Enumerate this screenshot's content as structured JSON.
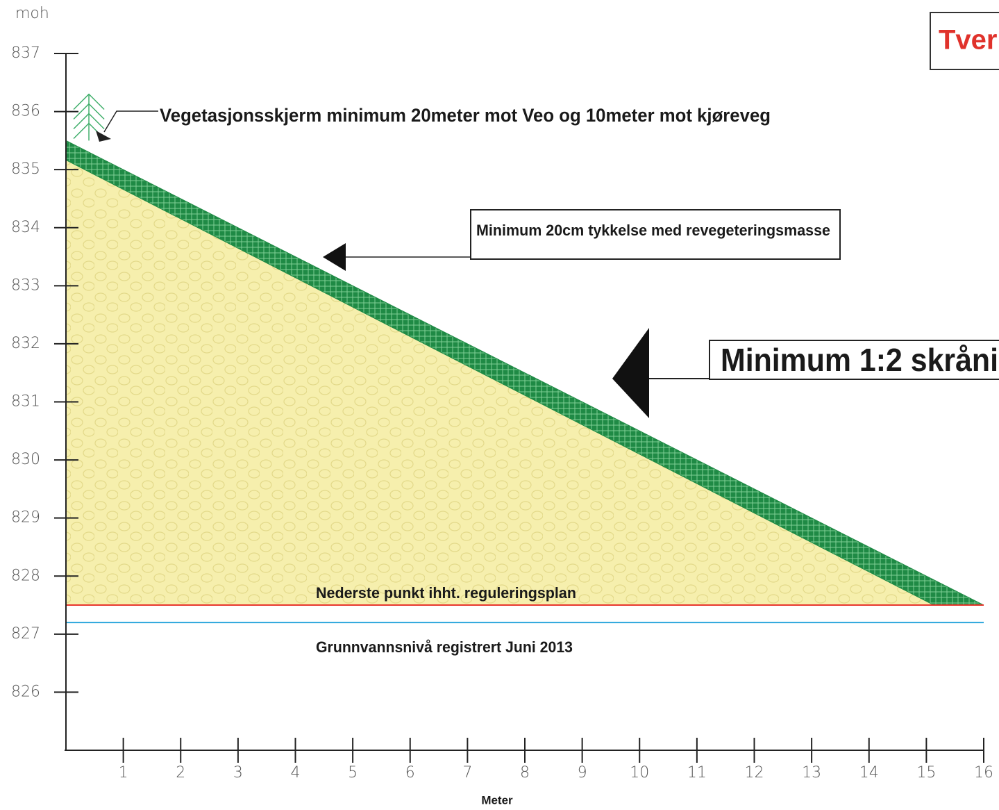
{
  "chart_data": {
    "type": "profile",
    "title": "Tverr",
    "y_label": "moh",
    "x_label": "Meter",
    "xlim": [
      0,
      16
    ],
    "ylim": [
      825,
      837
    ],
    "xticks": [
      1,
      2,
      3,
      4,
      5,
      6,
      7,
      8,
      9,
      10,
      11,
      12,
      13,
      14,
      15,
      16
    ],
    "yticks": [
      826,
      827,
      828,
      829,
      830,
      831,
      832,
      833,
      834,
      835,
      836,
      837
    ],
    "slope": {
      "x": [
        0,
        16
      ],
      "values": [
        835.5,
        827.5
      ],
      "fill_color": "#f6efad",
      "layer_color": "#1f8a45"
    },
    "series": [
      {
        "name": "Nederste punkt ihht. reguleringsplan",
        "color": "#e8362c",
        "x": [
          0,
          16
        ],
        "values": [
          827.5,
          827.5
        ]
      },
      {
        "name": "Grunnvannsnivå registrert Juni 2013",
        "color": "#2aa6dc",
        "x": [
          0,
          16
        ],
        "values": [
          827.2,
          827.2
        ]
      }
    ],
    "annotations": [
      {
        "text": "Vegetasjonsskjerm minimum 20meter mot Veo og 10meter mot kjøreveg"
      },
      {
        "text": "Minimum 20cm tykkelse med revegeteringsmasse"
      },
      {
        "text": "Minimum 1:2 skråni"
      }
    ]
  }
}
